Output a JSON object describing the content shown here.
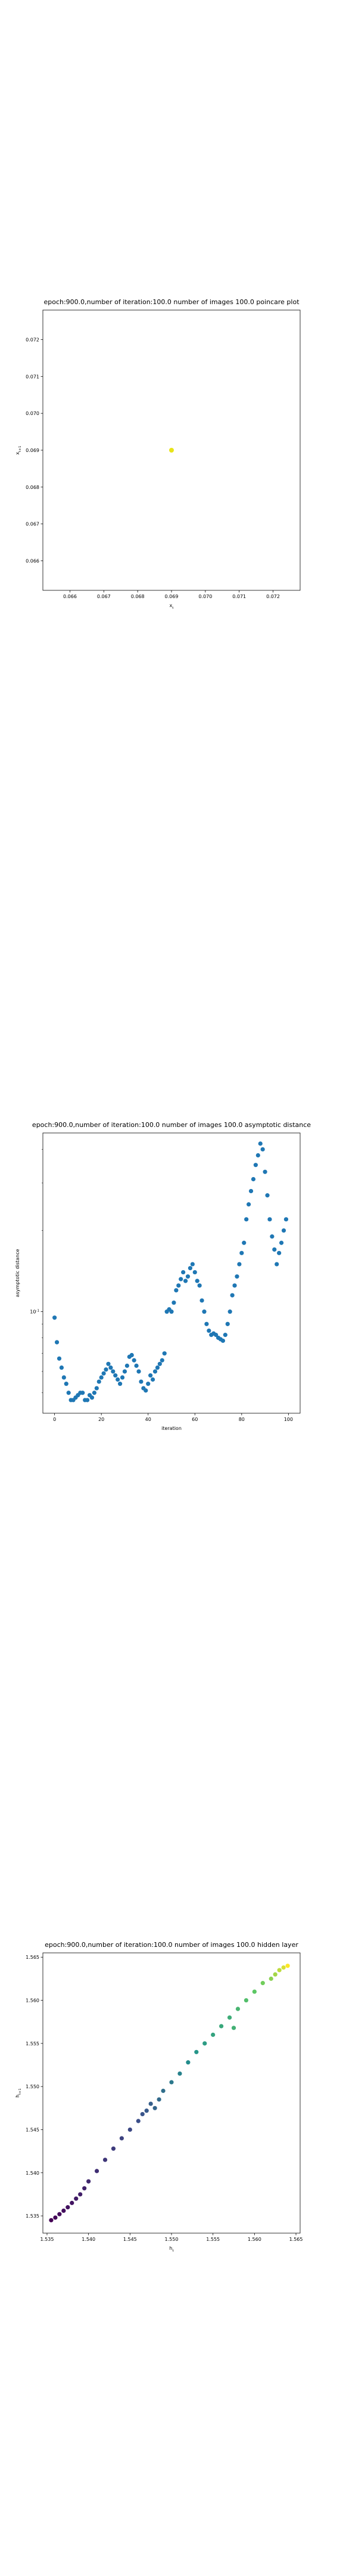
{
  "charts": [
    {
      "id": "poincare",
      "title": "epoch:900.0,number of iteration:100.0 number of images 100.0 poincare plot",
      "type": "scatter",
      "xlabel": "x_t",
      "ylabel": "x_{t+1}",
      "xlim": [
        0.0652,
        0.0728
      ],
      "ylim": [
        0.0652,
        0.0728
      ],
      "xticks": [
        "0.066",
        "0.067",
        "0.068",
        "0.069",
        "0.070",
        "0.071",
        "0.072"
      ],
      "yticks": [
        "0.066",
        "0.067",
        "0.068",
        "0.069",
        "0.070",
        "0.071",
        "0.072"
      ],
      "points": [
        {
          "x": 0.069,
          "y": 0.069,
          "color": "#e8e419"
        }
      ]
    },
    {
      "id": "asymptotic",
      "title": "epoch:900.0,number of iteration:100.0  number of images 100.0 asymptotic distance",
      "type": "scatter",
      "xlabel": "iteration",
      "ylabel": "asymptotic distance",
      "xlim": [
        -5,
        105
      ],
      "yscale": "log",
      "ylim": [
        0.042,
        0.46
      ],
      "xticks": [
        "0",
        "20",
        "40",
        "60",
        "80",
        "100"
      ],
      "yticks": [
        "10^{-1}"
      ],
      "color": "#1f77b4",
      "x": [
        0,
        1,
        2,
        3,
        4,
        5,
        6,
        7,
        8,
        9,
        10,
        11,
        12,
        13,
        14,
        15,
        16,
        17,
        18,
        19,
        20,
        21,
        22,
        23,
        24,
        25,
        26,
        27,
        28,
        29,
        30,
        31,
        32,
        33,
        34,
        35,
        36,
        37,
        38,
        39,
        40,
        41,
        42,
        43,
        44,
        45,
        46,
        47,
        48,
        49,
        50,
        51,
        52,
        53,
        54,
        55,
        56,
        57,
        58,
        59,
        60,
        61,
        62,
        63,
        64,
        65,
        66,
        67,
        68,
        69,
        70,
        71,
        72,
        73,
        74,
        75,
        76,
        77,
        78,
        79,
        80,
        81,
        82,
        83,
        84,
        85,
        86,
        87,
        88,
        89,
        90,
        91,
        92,
        93,
        94,
        95,
        96,
        97,
        98,
        99
      ],
      "y": [
        0.095,
        0.077,
        0.067,
        0.062,
        0.057,
        0.054,
        0.05,
        0.047,
        0.047,
        0.048,
        0.049,
        0.05,
        0.05,
        0.047,
        0.047,
        0.049,
        0.048,
        0.05,
        0.052,
        0.055,
        0.057,
        0.059,
        0.061,
        0.064,
        0.062,
        0.06,
        0.058,
        0.056,
        0.054,
        0.057,
        0.06,
        0.063,
        0.068,
        0.069,
        0.066,
        0.063,
        0.06,
        0.055,
        0.052,
        0.051,
        0.054,
        0.058,
        0.056,
        0.06,
        0.062,
        0.064,
        0.066,
        0.07,
        0.1,
        0.102,
        0.1,
        0.108,
        0.12,
        0.125,
        0.132,
        0.14,
        0.13,
        0.135,
        0.145,
        0.15,
        0.14,
        0.13,
        0.125,
        0.11,
        0.1,
        0.09,
        0.085,
        0.082,
        0.083,
        0.082,
        0.08,
        0.079,
        0.078,
        0.082,
        0.09,
        0.1,
        0.115,
        0.125,
        0.135,
        0.15,
        0.165,
        0.18,
        0.22,
        0.25,
        0.28,
        0.31,
        0.35,
        0.38,
        0.42,
        0.4,
        0.33,
        0.27,
        0.22,
        0.19,
        0.17,
        0.15,
        0.165,
        0.18,
        0.2,
        0.22
      ]
    },
    {
      "id": "hidden",
      "title": "epoch:900.0,number of iteration:100.0  number of images 100.0 hidden layer",
      "type": "scatter",
      "xlabel": "h_t",
      "ylabel": "h_{t+1}",
      "xlim": [
        1.5345,
        1.5655
      ],
      "ylim": [
        1.533,
        1.5655
      ],
      "xticks": [
        "1.535",
        "1.540",
        "1.545",
        "1.550",
        "1.555",
        "1.560",
        "1.565"
      ],
      "yticks": [
        "1.535",
        "1.540",
        "1.545",
        "1.550",
        "1.555",
        "1.560",
        "1.565"
      ],
      "colormap": [
        "#440154",
        "#3b528b",
        "#21918c",
        "#5ec962",
        "#fde725"
      ],
      "points": [
        {
          "x": 1.5355,
          "y": 1.5345,
          "c": 0.0
        },
        {
          "x": 1.536,
          "y": 1.5348,
          "c": 0.02
        },
        {
          "x": 1.5365,
          "y": 1.5352,
          "c": 0.03
        },
        {
          "x": 1.537,
          "y": 1.5356,
          "c": 0.04
        },
        {
          "x": 1.5375,
          "y": 1.536,
          "c": 0.05
        },
        {
          "x": 1.538,
          "y": 1.5365,
          "c": 0.06
        },
        {
          "x": 1.5385,
          "y": 1.537,
          "c": 0.08
        },
        {
          "x": 1.539,
          "y": 1.5375,
          "c": 0.09
        },
        {
          "x": 1.5395,
          "y": 1.5382,
          "c": 0.1
        },
        {
          "x": 1.54,
          "y": 1.539,
          "c": 0.12
        },
        {
          "x": 1.541,
          "y": 1.5402,
          "c": 0.14
        },
        {
          "x": 1.542,
          "y": 1.5415,
          "c": 0.16
        },
        {
          "x": 1.543,
          "y": 1.5428,
          "c": 0.18
        },
        {
          "x": 1.544,
          "y": 1.544,
          "c": 0.2
        },
        {
          "x": 1.545,
          "y": 1.545,
          "c": 0.22
        },
        {
          "x": 1.546,
          "y": 1.546,
          "c": 0.24
        },
        {
          "x": 1.5465,
          "y": 1.5468,
          "c": 0.26
        },
        {
          "x": 1.547,
          "y": 1.5472,
          "c": 0.28
        },
        {
          "x": 1.5475,
          "y": 1.548,
          "c": 0.3
        },
        {
          "x": 1.548,
          "y": 1.5475,
          "c": 0.32
        },
        {
          "x": 1.5485,
          "y": 1.5485,
          "c": 0.34
        },
        {
          "x": 1.549,
          "y": 1.5495,
          "c": 0.36
        },
        {
          "x": 1.55,
          "y": 1.5505,
          "c": 0.4
        },
        {
          "x": 1.551,
          "y": 1.5515,
          "c": 0.44
        },
        {
          "x": 1.552,
          "y": 1.5528,
          "c": 0.48
        },
        {
          "x": 1.553,
          "y": 1.554,
          "c": 0.52
        },
        {
          "x": 1.554,
          "y": 1.555,
          "c": 0.55
        },
        {
          "x": 1.555,
          "y": 1.556,
          "c": 0.58
        },
        {
          "x": 1.556,
          "y": 1.557,
          "c": 0.6
        },
        {
          "x": 1.557,
          "y": 1.558,
          "c": 0.62
        },
        {
          "x": 1.5575,
          "y": 1.5568,
          "c": 0.64
        },
        {
          "x": 1.558,
          "y": 1.559,
          "c": 0.66
        },
        {
          "x": 1.559,
          "y": 1.56,
          "c": 0.7
        },
        {
          "x": 1.56,
          "y": 1.561,
          "c": 0.74
        },
        {
          "x": 1.561,
          "y": 1.562,
          "c": 0.78
        },
        {
          "x": 1.562,
          "y": 1.5625,
          "c": 0.82
        },
        {
          "x": 1.5625,
          "y": 1.563,
          "c": 0.86
        },
        {
          "x": 1.563,
          "y": 1.5635,
          "c": 0.9
        },
        {
          "x": 1.5635,
          "y": 1.5638,
          "c": 0.94
        },
        {
          "x": 1.564,
          "y": 1.564,
          "c": 1.0
        }
      ]
    }
  ]
}
